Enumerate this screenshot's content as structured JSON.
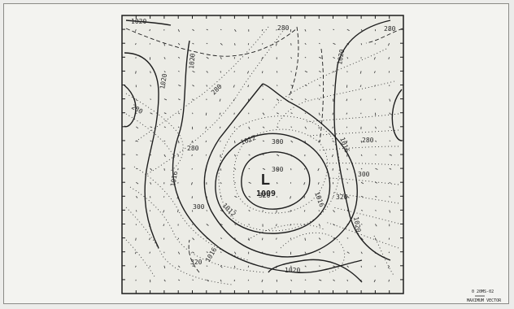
{
  "map": {
    "low_center": {
      "symbol": "L",
      "value": "1009"
    },
    "isobar_labels": [
      "1020",
      "1020",
      "1020",
      "1020",
      "1020",
      "1020",
      "1012",
      "1012",
      "1016",
      "1016",
      "1016",
      "1016"
    ],
    "height_labels": [
      "280",
      "280",
      "280",
      "280",
      "280",
      "280",
      "300",
      "300",
      "300",
      "300",
      "320",
      "320",
      "320"
    ],
    "footer": {
      "scale_value": "0 20MS-02",
      "scale_caption": "MAXIMUM VECTOR"
    },
    "colors": {
      "background": "#f3f3f0",
      "plot": "#ecece6",
      "ink": "#2a2a2a"
    }
  }
}
